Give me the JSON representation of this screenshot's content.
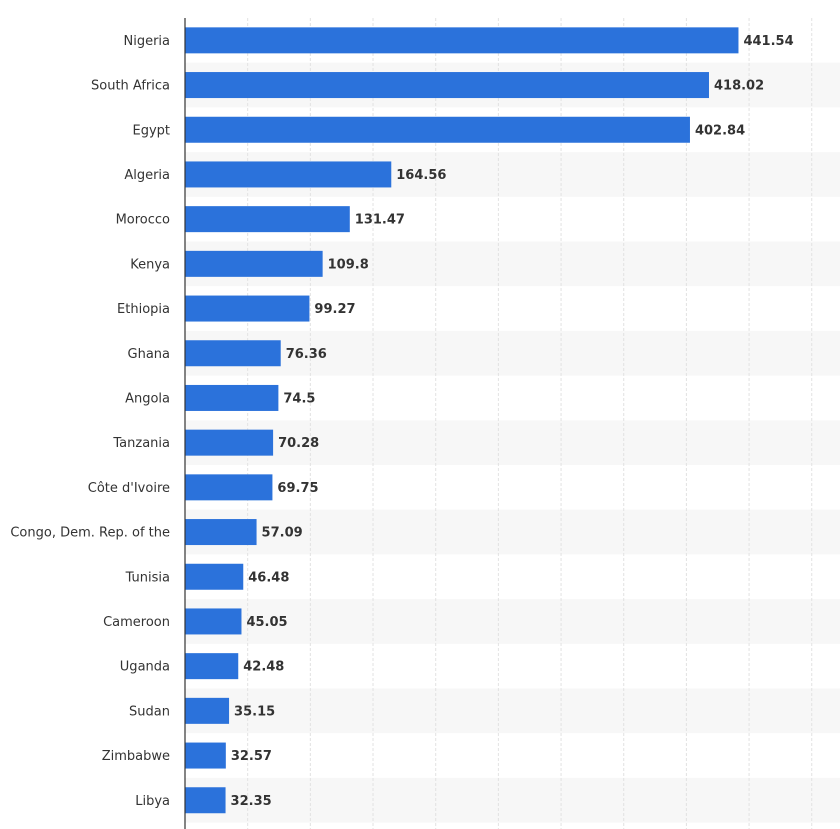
{
  "chart_data": {
    "type": "bar",
    "orientation": "horizontal",
    "categories": [
      "Nigeria",
      "South Africa",
      "Egypt",
      "Algeria",
      "Morocco",
      "Kenya",
      "Ethiopia",
      "Ghana",
      "Angola",
      "Tanzania",
      "Côte d'Ivoire",
      "Congo, Dem. Rep. of the",
      "Tunisia",
      "Cameroon",
      "Uganda",
      "Sudan",
      "Zimbabwe",
      "Libya"
    ],
    "values": [
      441.54,
      418.02,
      402.84,
      164.56,
      131.47,
      109.8,
      99.27,
      76.36,
      74.5,
      70.28,
      69.75,
      57.09,
      46.48,
      45.05,
      42.48,
      35.15,
      32.57,
      32.35
    ],
    "value_labels": [
      "441.54",
      "418.02",
      "402.84",
      "164.56",
      "131.47",
      "109.8",
      "99.27",
      "76.36",
      "74.5",
      "70.28",
      "69.75",
      "57.09",
      "46.48",
      "45.05",
      "42.48",
      "35.15",
      "32.57",
      "32.35"
    ],
    "title": "",
    "xlabel": "",
    "ylabel": "",
    "xlim": [
      0,
      500
    ],
    "grid": true,
    "legend": "none",
    "bar_color": "#2b72db",
    "band_color": "#f7f7f7"
  }
}
